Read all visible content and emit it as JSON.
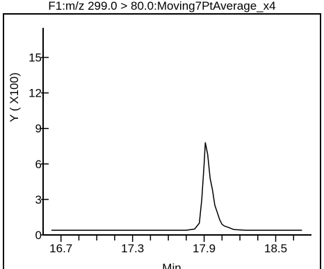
{
  "chart_data": {
    "type": "line",
    "title": "F1:m/z 299.0 > 80.0:Moving7PtAverage_x4",
    "xlabel": "Min",
    "ylabel": "Y ( X100)",
    "xlim": [
      16.55,
      18.8
    ],
    "ylim": [
      0,
      17.5
    ],
    "x_ticks": [
      {
        "value": 16.7,
        "label": "16.7"
      },
      {
        "value": 17.3,
        "label": "17.3"
      },
      {
        "value": 17.9,
        "label": "17.9"
      },
      {
        "value": 18.5,
        "label": "18.5"
      }
    ],
    "x_minor_ticks": [
      16.85,
      17.0,
      17.15,
      17.45,
      17.6,
      17.75,
      18.05,
      18.2,
      18.35,
      18.65
    ],
    "y_ticks": [
      {
        "value": 0,
        "label": "0"
      },
      {
        "value": 3,
        "label": "3"
      },
      {
        "value": 6,
        "label": "6"
      },
      {
        "value": 9,
        "label": "9"
      },
      {
        "value": 12,
        "label": "12"
      },
      {
        "value": 15,
        "label": "15"
      }
    ],
    "series": [
      {
        "color": "#000000",
        "x": [
          16.62,
          17.6,
          17.75,
          17.82,
          17.86,
          17.88,
          17.9,
          17.91,
          17.93,
          17.95,
          17.97,
          17.99,
          18.01,
          18.03,
          18.05,
          18.07,
          18.1,
          18.15,
          18.25,
          18.4,
          18.55,
          18.72
        ],
        "y": [
          0.4,
          0.4,
          0.4,
          0.5,
          1.0,
          3.0,
          6.0,
          7.8,
          6.8,
          4.8,
          3.8,
          2.5,
          1.9,
          1.3,
          0.9,
          0.75,
          0.65,
          0.45,
          0.4,
          0.4,
          0.4,
          0.4
        ]
      }
    ],
    "grid": false,
    "legend": "none"
  }
}
